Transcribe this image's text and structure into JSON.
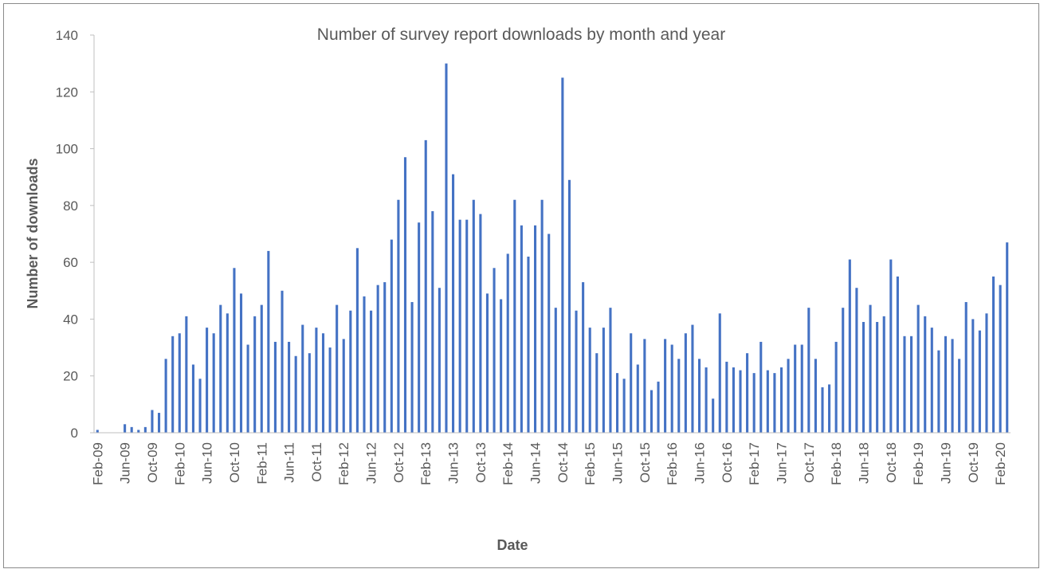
{
  "chart_data": {
    "type": "bar",
    "title": "Number of survey report downloads by month and year",
    "xlabel": "Date",
    "ylabel": "Number of downloads",
    "ylim": [
      0,
      140
    ],
    "yticks": [
      "0",
      "20",
      "40",
      "60",
      "80",
      "100",
      "120",
      "140"
    ],
    "grid": false,
    "legend": "none",
    "bar_color": "#4472c4",
    "categories": [
      "Feb-09",
      "Mar-09",
      "Apr-09",
      "May-09",
      "Jun-09",
      "Jul-09",
      "Aug-09",
      "Sep-09",
      "Oct-09",
      "Nov-09",
      "Dec-09",
      "Jan-10",
      "Feb-10",
      "Mar-10",
      "Apr-10",
      "May-10",
      "Jun-10",
      "Jul-10",
      "Aug-10",
      "Sep-10",
      "Oct-10",
      "Nov-10",
      "Dec-10",
      "Jan-11",
      "Feb-11",
      "Mar-11",
      "Apr-11",
      "May-11",
      "Jun-11",
      "Jul-11",
      "Aug-11",
      "Sep-11",
      "Oct-11",
      "Nov-11",
      "Dec-11",
      "Jan-12",
      "Feb-12",
      "Mar-12",
      "Apr-12",
      "May-12",
      "Jun-12",
      "Jul-12",
      "Aug-12",
      "Sep-12",
      "Oct-12",
      "Nov-12",
      "Dec-12",
      "Jan-13",
      "Feb-13",
      "Mar-13",
      "Apr-13",
      "May-13",
      "Jun-13",
      "Jul-13",
      "Aug-13",
      "Sep-13",
      "Oct-13",
      "Nov-13",
      "Dec-13",
      "Jan-14",
      "Feb-14",
      "Mar-14",
      "Apr-14",
      "May-14",
      "Jun-14",
      "Jul-14",
      "Aug-14",
      "Sep-14",
      "Oct-14",
      "Nov-14",
      "Dec-14",
      "Jan-15",
      "Feb-15",
      "Mar-15",
      "Apr-15",
      "May-15",
      "Jun-15",
      "Jul-15",
      "Aug-15",
      "Sep-15",
      "Oct-15",
      "Nov-15",
      "Dec-15",
      "Jan-16",
      "Feb-16",
      "Mar-16",
      "Apr-16",
      "May-16",
      "Jun-16",
      "Jul-16",
      "Aug-16",
      "Sep-16",
      "Oct-16",
      "Nov-16",
      "Dec-16",
      "Jan-17",
      "Feb-17",
      "Mar-17",
      "Apr-17",
      "May-17",
      "Jun-17",
      "Jul-17",
      "Aug-17",
      "Sep-17",
      "Oct-17",
      "Nov-17",
      "Dec-17",
      "Jan-18",
      "Feb-18",
      "Mar-18",
      "Apr-18",
      "May-18",
      "Jun-18",
      "Jul-18",
      "Aug-18",
      "Sep-18",
      "Oct-18",
      "Nov-18",
      "Dec-18",
      "Jan-19",
      "Feb-19",
      "Mar-19",
      "Apr-19",
      "May-19",
      "Jun-19",
      "Jul-19",
      "Aug-19",
      "Sep-19",
      "Oct-19",
      "Nov-19",
      "Dec-19",
      "Jan-20",
      "Feb-20",
      "Mar-20"
    ],
    "values": [
      1,
      0,
      0,
      0,
      3,
      2,
      1,
      2,
      8,
      7,
      26,
      34,
      35,
      41,
      24,
      19,
      37,
      35,
      45,
      42,
      58,
      49,
      31,
      41,
      45,
      64,
      32,
      50,
      32,
      27,
      38,
      28,
      37,
      35,
      30,
      45,
      33,
      43,
      65,
      48,
      43,
      52,
      53,
      68,
      82,
      97,
      46,
      74,
      103,
      78,
      51,
      130,
      91,
      75,
      75,
      82,
      77,
      49,
      58,
      47,
      63,
      82,
      73,
      62,
      73,
      82,
      70,
      44,
      125,
      89,
      43,
      53,
      37,
      28,
      37,
      44,
      21,
      19,
      35,
      24,
      33,
      15,
      18,
      33,
      31,
      26,
      35,
      38,
      26,
      23,
      12,
      42,
      25,
      23,
      22,
      28,
      21,
      32,
      22,
      21,
      23,
      26,
      31,
      31,
      44,
      26,
      16,
      17,
      32,
      44,
      61,
      51,
      39,
      45,
      39,
      41,
      61,
      55,
      34,
      34,
      45,
      41,
      37,
      29,
      34,
      33,
      26,
      46,
      40,
      36,
      42,
      55,
      52,
      67
    ],
    "xtick_labels": [
      "Feb-09",
      "Jun-09",
      "Oct-09",
      "Feb-10",
      "Jun-10",
      "Oct-10",
      "Feb-11",
      "Jun-11",
      "Oct-11",
      "Feb-12",
      "Jun-12",
      "Oct-12",
      "Feb-13",
      "Jun-13",
      "Oct-13",
      "Feb-14",
      "Jun-14",
      "Oct-14",
      "Feb-15",
      "Jun-15",
      "Oct-15",
      "Feb-16",
      "Jun-16",
      "Oct-16",
      "Feb-17",
      "Jun-17",
      "Oct-17",
      "Feb-18",
      "Jun-18",
      "Oct-18",
      "Feb-19",
      "Jun-19",
      "Oct-19",
      "Feb-20"
    ]
  }
}
